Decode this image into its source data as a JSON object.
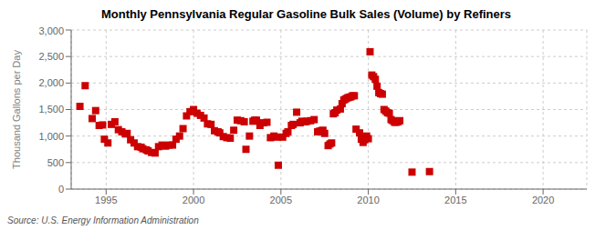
{
  "chart_data": {
    "type": "scatter",
    "title": "Monthly Pennsylvania Regular Gasoline Bulk Sales (Volume) by Refiners",
    "ylabel": "Thousand Gallons per Day",
    "source": "Source: U.S. Energy Information Administration",
    "color": "#CC0000",
    "marker": "square",
    "grid": true,
    "xlim": [
      1993.0,
      2022.5
    ],
    "ylim": [
      0,
      3000
    ],
    "xticks": [
      1995,
      2000,
      2005,
      2010,
      2015,
      2020
    ],
    "yticks": [
      0,
      500,
      {
        "value": 1000,
        "label": "1,000"
      },
      {
        "value": 1500,
        "label": "1,500"
      },
      {
        "value": 2000,
        "label": "2,000"
      },
      {
        "value": 2500,
        "label": "2,500"
      },
      {
        "value": 3000,
        "label": "3,000"
      }
    ],
    "x": [
      1993.5,
      1993.8,
      1994.2,
      1994.4,
      1994.6,
      1994.8,
      1994.9,
      1995.1,
      1995.3,
      1995.5,
      1995.7,
      1995.9,
      1996.1,
      1996.2,
      1996.4,
      1996.6,
      1996.8,
      1997.0,
      1997.1,
      1997.3,
      1997.4,
      1997.6,
      1997.8,
      1998.0,
      1998.2,
      1998.4,
      1998.6,
      1998.8,
      1999.0,
      1999.2,
      1999.4,
      1999.6,
      1999.8,
      2000.0,
      2000.2,
      2000.4,
      2000.6,
      2000.8,
      2001.0,
      2001.2,
      2001.4,
      2001.5,
      2001.7,
      2001.9,
      2002.1,
      2002.3,
      2002.5,
      2002.7,
      2002.9,
      2003.0,
      2003.2,
      2003.4,
      2003.5,
      2003.6,
      2003.8,
      2004.0,
      2004.2,
      2004.4,
      2004.6,
      2004.8,
      2004.85,
      2005.1,
      2005.3,
      2005.4,
      2005.6,
      2005.7,
      2005.9,
      2006.1,
      2006.2,
      2006.4,
      2006.5,
      2006.7,
      2006.9,
      2007.1,
      2007.2,
      2007.3,
      2007.4,
      2007.5,
      2007.7,
      2007.8,
      2007.9,
      2008.0,
      2008.1,
      2008.2,
      2008.4,
      2008.5,
      2008.6,
      2008.7,
      2008.8,
      2008.9,
      2009.0,
      2009.1,
      2009.2,
      2009.3,
      2009.5,
      2009.6,
      2009.7,
      2009.8,
      2009.9,
      2010.0,
      2010.1,
      2010.2,
      2010.3,
      2010.4,
      2010.5,
      2010.6,
      2010.7,
      2010.8,
      2010.9,
      2011.0,
      2011.1,
      2011.2,
      2011.3,
      2011.4,
      2011.5,
      2011.6,
      2011.7,
      2011.8,
      2012.5,
      2013.5
    ],
    "values": [
      1560,
      1950,
      1330,
      1480,
      1200,
      1210,
      940,
      870,
      1220,
      1270,
      1120,
      1080,
      1040,
      1050,
      930,
      870,
      800,
      790,
      760,
      740,
      720,
      690,
      680,
      800,
      830,
      810,
      830,
      830,
      940,
      1000,
      1140,
      1380,
      1460,
      1500,
      1430,
      1390,
      1340,
      1230,
      1220,
      1100,
      1080,
      1060,
      990,
      970,
      960,
      1110,
      1300,
      1290,
      1270,
      750,
      1000,
      1280,
      1300,
      1300,
      1200,
      1250,
      1260,
      970,
      1000,
      980,
      450,
      980,
      1050,
      1080,
      1200,
      1220,
      1450,
      1250,
      1280,
      1270,
      1280,
      1290,
      1310,
      1080,
      1090,
      1100,
      1110,
      1050,
      820,
      850,
      870,
      1420,
      1440,
      1490,
      1510,
      1610,
      1680,
      1700,
      1720,
      1730,
      1740,
      1760,
      1760,
      1130,
      1060,
      940,
      880,
      930,
      1000,
      950,
      2590,
      2150,
      2120,
      2070,
      1940,
      1820,
      1800,
      1790,
      1500,
      1470,
      1440,
      1430,
      1310,
      1290,
      1260,
      1260,
      1270,
      1290,
      320,
      330
    ]
  }
}
